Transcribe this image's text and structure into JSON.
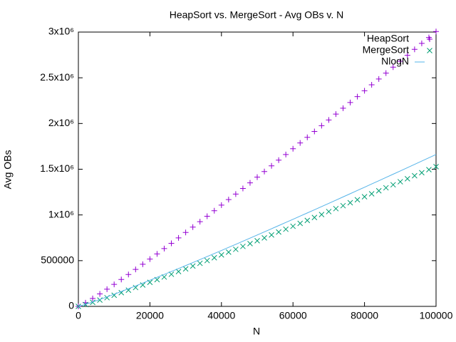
{
  "chart_data": {
    "type": "scatter",
    "title": "HeapSort vs. MergeSort - Avg OBs v. N",
    "x_label": "N",
    "y_label": "Avg OBs",
    "x": [
      0,
      2000,
      4000,
      6000,
      8000,
      10000,
      12000,
      14000,
      16000,
      18000,
      20000,
      22000,
      24000,
      26000,
      28000,
      30000,
      32000,
      34000,
      36000,
      38000,
      40000,
      42000,
      44000,
      46000,
      48000,
      50000,
      52000,
      54000,
      56000,
      58000,
      60000,
      62000,
      64000,
      66000,
      68000,
      70000,
      72000,
      74000,
      76000,
      78000,
      80000,
      82000,
      84000,
      86000,
      88000,
      90000,
      92000,
      94000,
      96000,
      98000,
      100000
    ],
    "series": [
      {
        "name": "HeapSort",
        "color": "#9400d3",
        "marker": "plus",
        "values": [
          0,
          40000,
          87000,
          136000,
          188000,
          241000,
          294000,
          349000,
          404000,
          461000,
          517000,
          574000,
          632000,
          690000,
          749000,
          808000,
          867000,
          926000,
          986000,
          1046000,
          1107000,
          1168000,
          1228000,
          1290000,
          1351000,
          1413000,
          1475000,
          1537000,
          1599000,
          1661000,
          1724000,
          1787000,
          1849000,
          1913000,
          1976000,
          2039000,
          2103000,
          2167000,
          2230000,
          2294000,
          2358000,
          2423000,
          2487000,
          2551000,
          2616000,
          2681000,
          2746000,
          2811000,
          2876000,
          2941000,
          3006000
        ]
      },
      {
        "name": "MergeSort",
        "color": "#009e73",
        "marker": "cross",
        "values": [
          0,
          20000,
          44000,
          69000,
          95000,
          122000,
          150000,
          177000,
          206000,
          234000,
          263000,
          292000,
          321000,
          351000,
          381000,
          410000,
          441000,
          471000,
          501000,
          532000,
          563000,
          593000,
          624000,
          656000,
          687000,
          718000,
          749000,
          781000,
          813000,
          844000,
          876000,
          908000,
          940000,
          972000,
          1004000,
          1037000,
          1069000,
          1101000,
          1134000,
          1166000,
          1199000,
          1231000,
          1264000,
          1297000,
          1330000,
          1363000,
          1396000,
          1429000,
          1462000,
          1495000,
          1528000
        ]
      },
      {
        "name": "NlogN",
        "color": "#56b4e9",
        "marker": "line",
        "values": [
          0,
          21932,
          47863,
          75305,
          103726,
          132877,
          162610,
          192826,
          223453,
          254444,
          285754,
          317357,
          349220,
          381325,
          413652,
          446180,
          478906,
          511817,
          544888,
          578135,
          611508,
          645051,
          678714,
          712514,
          746441,
          780482,
          814653,
          848928,
          883305,
          917786,
          952360,
          987022,
          1021812,
          1056651,
          1091596,
          1126631,
          1161758,
          1196976,
          1232232,
          1267594,
          1303017,
          1338505,
          1374053,
          1409668,
          1445359,
          1481160,
          1516991,
          1552882,
          1588875,
          1624926,
          1660964
        ]
      }
    ],
    "xlim": [
      0,
      100000
    ],
    "xticks": [
      0,
      20000,
      40000,
      60000,
      80000,
      100000
    ],
    "ylim": [
      0,
      3000000
    ],
    "yticks": [
      0,
      500000,
      {
        "value": 1000000,
        "label": "1x10⁶"
      },
      {
        "value": 1500000,
        "label": "1.5x10⁶"
      },
      {
        "value": 2000000,
        "label": "2x10⁶"
      },
      {
        "value": 2500000,
        "label": "2.5x10⁶"
      },
      {
        "value": 3000000,
        "label": "3x10⁶"
      }
    ],
    "grid": false,
    "legend": "top-right"
  }
}
